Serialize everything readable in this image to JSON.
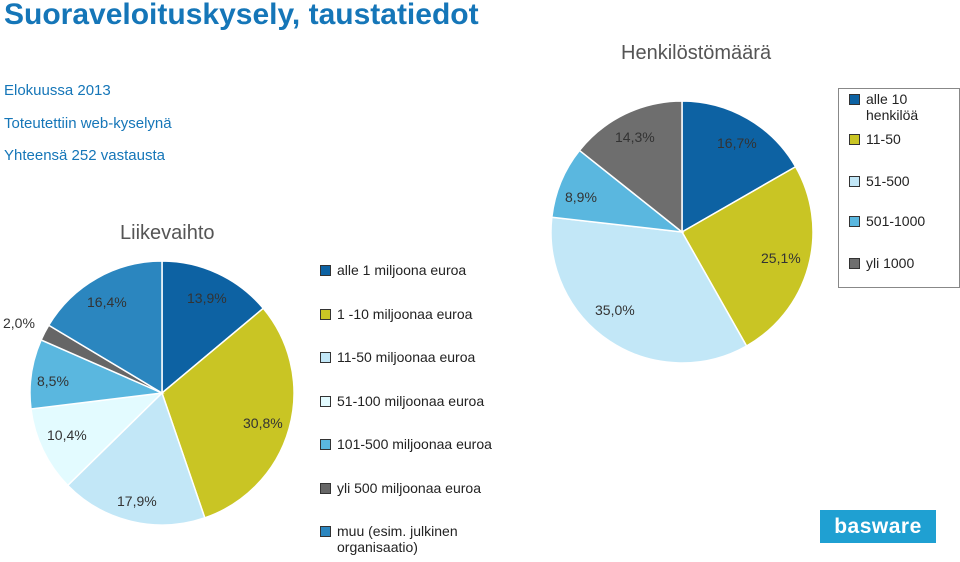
{
  "title": "Suoraveloituskysely, taustatiedot",
  "info": [
    "Elokuussa 2013",
    "Toteutettiin web-kyselynä",
    "Yhteensä 252 vastausta"
  ],
  "logo_text": "basware",
  "chart_data": [
    {
      "type": "pie",
      "title": "Liikevaihto",
      "categories": [
        "alle 1 miljoona euroa",
        "1 -10 miljoonaa euroa",
        "11-50 miljoonaa euroa",
        "51-100 miljoonaa euroa",
        "101-500 miljoonaa euroa",
        "yli 500 miljoonaa euroa",
        "muu (esim. julkinen organisaatio)"
      ],
      "values": [
        13.9,
        30.8,
        17.9,
        10.4,
        8.5,
        2.0,
        16.4
      ],
      "labels": [
        "13,9%",
        "30,8%",
        "17,9%",
        "10,4%",
        "8,5%",
        "2,0%",
        "16,4%"
      ],
      "colors": [
        "#0d62a3",
        "#c9c524",
        "#c2e7f7",
        "#e3fbff",
        "#5ab7df",
        "#666666",
        "#2b86bf"
      ],
      "legend_position": "right"
    },
    {
      "type": "pie",
      "title": "Henkilöstömäärä",
      "categories": [
        "alle 10 henkilöä",
        "11-50",
        "51-500",
        "501-1000",
        "yli 1000"
      ],
      "values": [
        16.7,
        25.1,
        35.0,
        8.9,
        14.3
      ],
      "labels": [
        "16,7%",
        "25,1%",
        "35,0%",
        "8,9%",
        "14,3%"
      ],
      "colors": [
        "#0d62a3",
        "#c9c524",
        "#c2e7f7",
        "#5ab7df",
        "#6e6e6e"
      ],
      "legend_position": "right"
    }
  ]
}
